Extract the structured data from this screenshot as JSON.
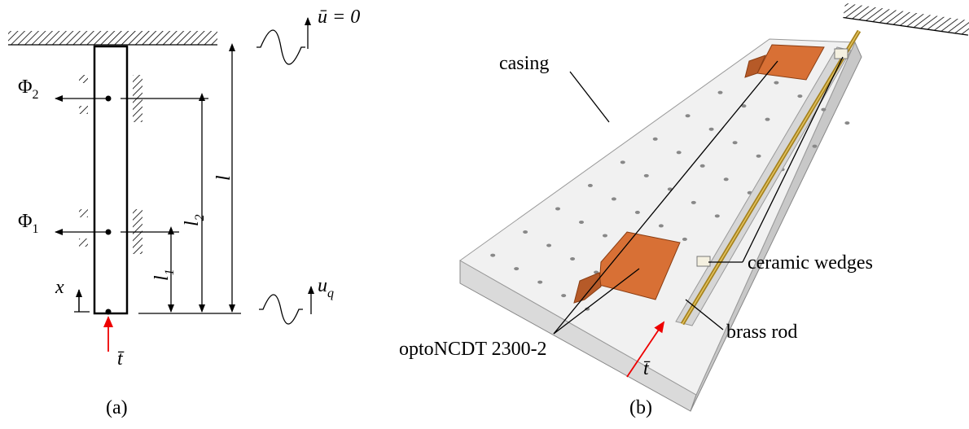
{
  "panel_a": {
    "caption": "(a)",
    "top_displacement": "ū = 0",
    "phi_2": {
      "base": "Φ",
      "sub": "2"
    },
    "phi_1": {
      "base": "Φ",
      "sub": "1"
    },
    "length": "l",
    "length_2": {
      "base": "l",
      "sub": "2"
    },
    "length_1": {
      "base": "l",
      "sub": "1"
    },
    "coordinate": "x",
    "bottom_displacement": {
      "base": "u",
      "sub": "q"
    },
    "traction": "t̄"
  },
  "panel_b": {
    "caption": "(b)",
    "casing": "casing",
    "wedges": "ceramic wedges",
    "sensor": "optoNCDT 2300-2",
    "rod": "brass rod",
    "traction": "t̄"
  }
}
